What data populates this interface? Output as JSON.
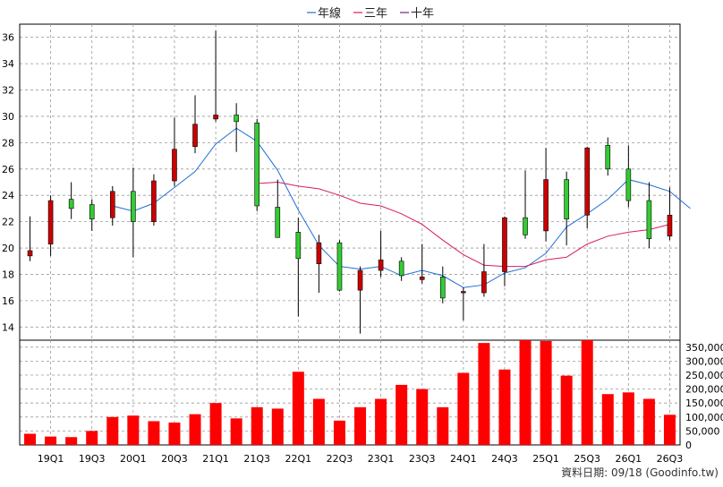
{
  "chart_data": {
    "type": "candlestick",
    "legend": [
      {
        "label": "年線",
        "color": "#1f6fd6"
      },
      {
        "label": "三年",
        "color": "#d81b60"
      },
      {
        "label": "十年",
        "color": "#7b1f8f"
      }
    ],
    "legend_position": "top-center",
    "grid": true,
    "up_color": "#cc0000",
    "down_color": "#33cc33",
    "volume_color": "#ff0000",
    "price_axis": {
      "min": 13,
      "max": 37,
      "ticks": [
        14,
        16,
        18,
        20,
        22,
        24,
        26,
        28,
        30,
        32,
        34,
        36
      ]
    },
    "volume_axis": {
      "min": 0,
      "max": 375000,
      "ticks": [
        "0",
        "50,000",
        "100,000",
        "150,000",
        "200,000",
        "250,000",
        "300,000",
        "350,000"
      ]
    },
    "x_tick_labels": [
      "19Q1",
      "19Q3",
      "20Q1",
      "20Q3",
      "21Q1",
      "21Q3",
      "22Q1",
      "22Q3",
      "23Q1",
      "23Q3",
      "24Q1",
      "24Q3",
      "25Q1",
      "25Q3",
      "26Q1",
      "26Q3"
    ],
    "candles": [
      {
        "o": 19.4,
        "h": 22.4,
        "l": 19.0,
        "c": 19.8
      },
      {
        "o": 20.3,
        "h": 24.0,
        "l": 19.4,
        "c": 23.6
      },
      {
        "o": 23.7,
        "h": 25.0,
        "l": 22.2,
        "c": 23.0
      },
      {
        "o": 23.3,
        "h": 23.7,
        "l": 21.3,
        "c": 22.2
      },
      {
        "o": 22.3,
        "h": 24.7,
        "l": 21.7,
        "c": 24.3
      },
      {
        "o": 24.3,
        "h": 26.1,
        "l": 19.3,
        "c": 22.0
      },
      {
        "o": 22.0,
        "h": 25.6,
        "l": 21.7,
        "c": 25.1
      },
      {
        "o": 25.1,
        "h": 29.9,
        "l": 24.7,
        "c": 27.5
      },
      {
        "o": 27.7,
        "h": 31.6,
        "l": 27.2,
        "c": 29.4
      },
      {
        "o": 29.8,
        "h": 36.5,
        "l": 29.6,
        "c": 30.1
      },
      {
        "o": 30.1,
        "h": 31.0,
        "l": 27.3,
        "c": 29.6
      },
      {
        "o": 29.5,
        "h": 29.8,
        "l": 22.8,
        "c": 23.2
      },
      {
        "o": 23.1,
        "h": 25.2,
        "l": 20.8,
        "c": 20.8
      },
      {
        "o": 21.2,
        "h": 22.3,
        "l": 14.8,
        "c": 19.2
      },
      {
        "o": 18.8,
        "h": 21.0,
        "l": 16.6,
        "c": 20.4
      },
      {
        "o": 20.4,
        "h": 20.6,
        "l": 16.7,
        "c": 16.8
      },
      {
        "o": 16.8,
        "h": 18.6,
        "l": 13.5,
        "c": 18.3
      },
      {
        "o": 18.3,
        "h": 21.3,
        "l": 17.8,
        "c": 19.1
      },
      {
        "o": 19.0,
        "h": 19.3,
        "l": 17.5,
        "c": 17.9
      },
      {
        "o": 17.6,
        "h": 20.3,
        "l": 17.3,
        "c": 17.8
      },
      {
        "o": 17.8,
        "h": 18.6,
        "l": 15.8,
        "c": 16.2
      },
      {
        "o": 16.6,
        "h": 17.0,
        "l": 14.5,
        "c": 16.7
      },
      {
        "o": 16.6,
        "h": 20.3,
        "l": 16.3,
        "c": 18.2
      },
      {
        "o": 18.2,
        "h": 22.4,
        "l": 17.1,
        "c": 22.3
      },
      {
        "o": 22.3,
        "h": 25.9,
        "l": 20.7,
        "c": 21.0
      },
      {
        "o": 21.3,
        "h": 27.6,
        "l": 20.5,
        "c": 25.2
      },
      {
        "o": 25.2,
        "h": 25.8,
        "l": 20.2,
        "c": 22.2
      },
      {
        "o": 22.5,
        "h": 27.7,
        "l": 21.5,
        "c": 27.6
      },
      {
        "o": 27.8,
        "h": 28.4,
        "l": 25.5,
        "c": 26.0
      },
      {
        "o": 26.0,
        "h": 27.8,
        "l": 23.1,
        "c": 23.6
      },
      {
        "o": 23.6,
        "h": 25.0,
        "l": 20.0,
        "c": 20.7
      },
      {
        "o": 20.9,
        "h": 24.6,
        "l": 20.6,
        "c": 22.5
      }
    ],
    "lines": [
      {
        "name": "年線",
        "color": "#1f6fd6",
        "start_index": 4,
        "values": [
          23.2,
          22.8,
          23.4,
          24.6,
          25.8,
          27.9,
          29.1,
          28.1,
          25.9,
          22.9,
          20.2,
          18.6,
          18.4,
          18.6,
          17.9,
          18.3,
          17.9,
          17.0,
          17.2,
          18.1,
          18.5,
          19.6,
          21.6,
          22.6,
          23.7,
          25.2,
          24.8,
          24.3,
          23.0
        ]
      },
      {
        "name": "三年",
        "color": "#d81b60",
        "start_index": 11,
        "values": [
          24.9,
          25.0,
          24.7,
          24.5,
          24.0,
          23.4,
          23.2,
          22.6,
          21.8,
          20.6,
          19.5,
          18.7,
          18.6,
          18.6,
          19.1,
          19.3,
          20.3,
          20.9,
          21.2,
          21.4,
          21.8
        ]
      },
      {
        "name": "十年",
        "color": "#7b1f8f",
        "start_index": 0,
        "values": []
      }
    ],
    "volumes": [
      40000,
      30000,
      28000,
      50000,
      100000,
      105000,
      85000,
      80000,
      110000,
      150000,
      95000,
      135000,
      130000,
      262000,
      165000,
      87000,
      135000,
      165000,
      215000,
      200000,
      135000,
      258000,
      365000,
      270000,
      375000,
      372000,
      248000,
      375000,
      182000,
      188000,
      165000,
      108000
    ]
  },
  "footer": {
    "source": "資料日期: 09/18  (Goodinfo.tw)"
  }
}
